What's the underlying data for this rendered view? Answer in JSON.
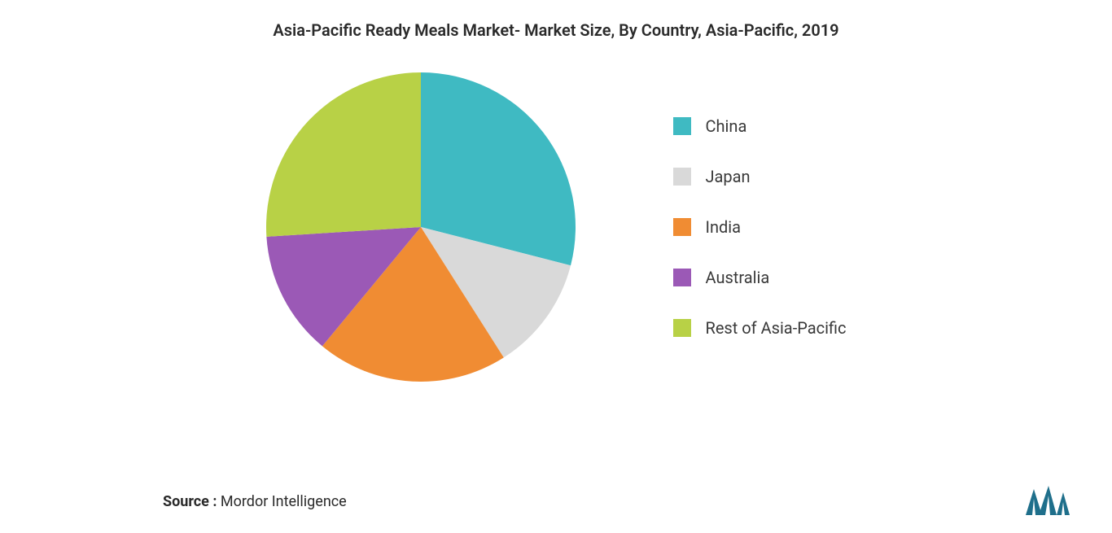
{
  "chart": {
    "type": "pie",
    "title": "Asia-Pacific Ready Meals Market- Market Size, By Country, Asia-Pacific, 2019",
    "title_fontsize": 20,
    "title_fontweight": 600,
    "title_color": "#2a2a2a",
    "background_color": "#ffffff",
    "slices": [
      {
        "label": "China",
        "value": 29,
        "color": "#3fbac2"
      },
      {
        "label": "Japan",
        "value": 12,
        "color": "#d9d9d9"
      },
      {
        "label": "India",
        "value": 20,
        "color": "#f08c33"
      },
      {
        "label": "Australia",
        "value": 13,
        "color": "#9b59b6"
      },
      {
        "label": "Rest of Asia-Pacific",
        "value": 26,
        "color": "#b8d146"
      }
    ],
    "start_angle_deg": -90,
    "pie_radius": 190,
    "legend": {
      "position": "right",
      "swatch_size": 22,
      "label_fontsize": 20,
      "label_color": "#3a3a3a",
      "gap": 38
    }
  },
  "source": {
    "label": "Source :",
    "value": "Mordor Intelligence",
    "fontsize": 18
  },
  "logo": {
    "name": "mordor-intelligence-logo",
    "bar_color": "#1f6f8b",
    "accent_color": "#1f6f8b"
  }
}
